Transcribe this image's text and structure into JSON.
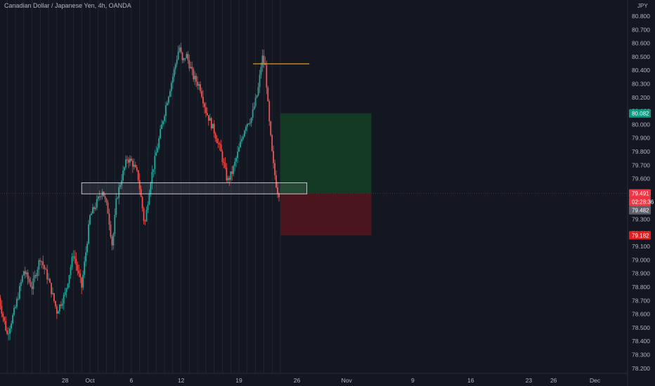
{
  "header": {
    "title": "Canadian Dollar / Japanese Yen, 4h, OANDA"
  },
  "price_axis": {
    "currency": "JPY"
  },
  "badges": {
    "target": {
      "label": "80.082",
      "color": "#089981"
    },
    "last": {
      "label": "79.491",
      "color": "#f23645"
    },
    "countdown": {
      "label": "02:28:36",
      "color": "#f23645"
    },
    "cursor": {
      "label": "79.482",
      "color": "#5d606b"
    },
    "stop": {
      "label": "79.182",
      "color": "#e01e1e"
    }
  },
  "colors": {
    "background": "#131722",
    "up_candle": "#26a69a",
    "down_candle": "#ef5350",
    "orange_line": "#f5a623",
    "profit_zone": "#133a22",
    "loss_zone": "#4a151c"
  },
  "chart_data": {
    "type": "candlestick",
    "title": "Canadian Dollar / Japanese Yen, 4h, OANDA",
    "symbol": "CADJPY",
    "interval": "4h",
    "source": "OANDA",
    "ylim": [
      78.15,
      80.95
    ],
    "y_ticks": [
      "80.800",
      "80.700",
      "80.600",
      "80.500",
      "80.400",
      "80.300",
      "80.200",
      "80.100",
      "80.000",
      "79.900",
      "79.800",
      "79.700",
      "79.600",
      "79.500",
      "79.400",
      "79.300",
      "79.200",
      "79.100",
      "79.000",
      "78.900",
      "78.800",
      "78.700",
      "78.600",
      "78.500",
      "78.400",
      "78.300",
      "78.200"
    ],
    "x_ticks": [
      {
        "label": "28",
        "t": -3
      },
      {
        "label": "Oct",
        "t": 0
      },
      {
        "label": "6",
        "t": 5
      },
      {
        "label": "12",
        "t": 11
      },
      {
        "label": "19",
        "t": 18
      },
      {
        "label": "26",
        "t": 25
      },
      {
        "label": "Nov",
        "t": 31
      },
      {
        "label": "9",
        "t": 39
      },
      {
        "label": "16",
        "t": 46
      },
      {
        "label": "23",
        "t": 53
      },
      {
        "label": "26",
        "t": 56
      },
      {
        "label": "Dec",
        "t": 61
      }
    ],
    "price_path": [
      [
        -11,
        78.72
      ],
      [
        -10,
        78.45
      ],
      [
        -9,
        78.65
      ],
      [
        -8,
        78.92
      ],
      [
        -7,
        78.8
      ],
      [
        -6,
        79.02
      ],
      [
        -5,
        78.85
      ],
      [
        -4,
        78.62
      ],
      [
        -3,
        78.75
      ],
      [
        -2,
        79.05
      ],
      [
        -1,
        78.8
      ],
      [
        0,
        79.32
      ],
      [
        0.8,
        79.42
      ],
      [
        1.5,
        79.52
      ],
      [
        2.2,
        79.35
      ],
      [
        2.7,
        79.1
      ],
      [
        3.2,
        79.45
      ],
      [
        3.8,
        79.6
      ],
      [
        4.5,
        79.75
      ],
      [
        5.1,
        79.72
      ],
      [
        5.8,
        79.62
      ],
      [
        6.3,
        79.4
      ],
      [
        6.6,
        79.25
      ],
      [
        7.3,
        79.58
      ],
      [
        8.2,
        79.85
      ],
      [
        9.2,
        80.15
      ],
      [
        10.1,
        80.38
      ],
      [
        10.8,
        80.58
      ],
      [
        11.2,
        80.45
      ],
      [
        11.6,
        80.52
      ],
      [
        12.5,
        80.35
      ],
      [
        13.3,
        80.28
      ],
      [
        14.0,
        80.1
      ],
      [
        15.0,
        79.95
      ],
      [
        15.8,
        79.8
      ],
      [
        16.6,
        79.58
      ],
      [
        17.2,
        79.65
      ],
      [
        18.0,
        79.82
      ],
      [
        18.8,
        80.0
      ],
      [
        19.5,
        80.05
      ],
      [
        20.3,
        80.25
      ],
      [
        20.8,
        80.5
      ],
      [
        21.2,
        80.42
      ],
      [
        21.6,
        80.05
      ],
      [
        22.1,
        79.72
      ],
      [
        22.6,
        79.52
      ],
      [
        22.85,
        79.49
      ]
    ],
    "up_count_hint": "mixed",
    "annotations": {
      "horizontal_ray": {
        "price": 80.448,
        "t_from": 19.7,
        "t_to": 26.5
      },
      "zone_rectangle": {
        "price_top": 79.57,
        "price_bottom": 79.488,
        "t_from": -1.0,
        "t_to": 26.2
      },
      "long_position": {
        "entry": 79.491,
        "target": 80.082,
        "stop": 79.182,
        "t_from": 23.0,
        "t_to": 34.0
      }
    },
    "current_price": 79.491,
    "grid": true
  }
}
